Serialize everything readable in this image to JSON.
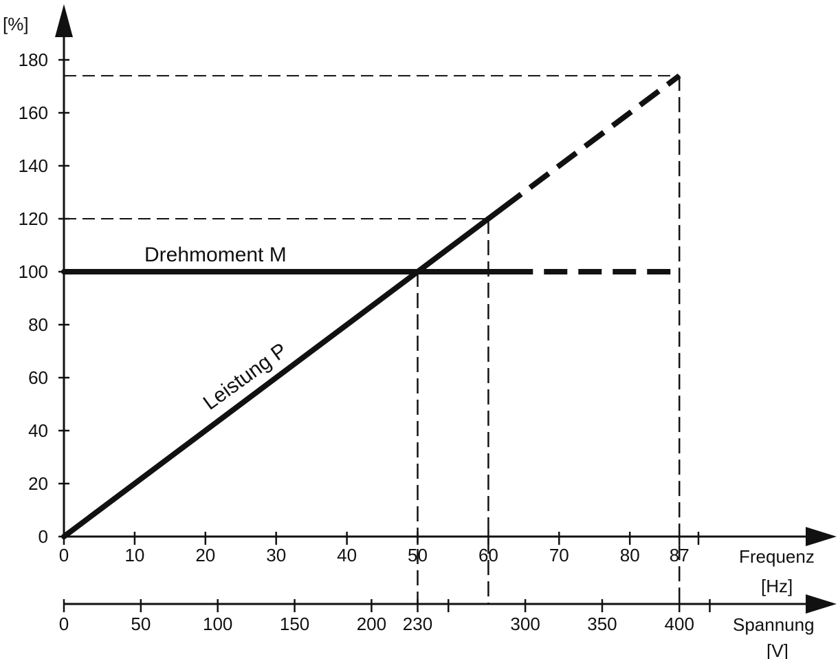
{
  "chart_data": {
    "type": "line",
    "y_axis": {
      "unit_label": "[%]",
      "range": [
        0,
        180
      ],
      "ticks": [
        0,
        20,
        40,
        60,
        80,
        100,
        120,
        140,
        160,
        180
      ]
    },
    "x_axis_frequency": {
      "label": "Frequenz",
      "unit_label": "[Hz]",
      "ticks": [
        "0",
        "10",
        "20",
        "30",
        "40",
        "50",
        "60",
        "70",
        "80",
        "87"
      ]
    },
    "x_axis_voltage": {
      "label": "Spannung",
      "unit_label": "[V]",
      "ticks": [
        "0",
        "50",
        "100",
        "150",
        "200",
        "230",
        "300",
        "350",
        "400"
      ],
      "tick_positions_hz": [
        0,
        10.87,
        21.74,
        32.61,
        43.48,
        50,
        65.22,
        76.09,
        87
      ]
    },
    "series": [
      {
        "name": "Drehmoment M",
        "color": "#111111",
        "points_solid": [
          [
            0,
            100
          ],
          [
            63,
            100
          ]
        ],
        "points_dashed": [
          [
            63,
            100
          ],
          [
            87,
            100
          ]
        ]
      },
      {
        "name": "Leistung P",
        "color": "#111111",
        "points_solid": [
          [
            0,
            0
          ],
          [
            62,
            124
          ]
        ],
        "points_dashed": [
          [
            62,
            124
          ],
          [
            87,
            174
          ]
        ]
      }
    ],
    "reference_lines": [
      {
        "x_hz": 50,
        "y": 100
      },
      {
        "x_hz": 60,
        "y": 120
      },
      {
        "x_hz": 87,
        "y": 174
      }
    ],
    "grid": false
  }
}
